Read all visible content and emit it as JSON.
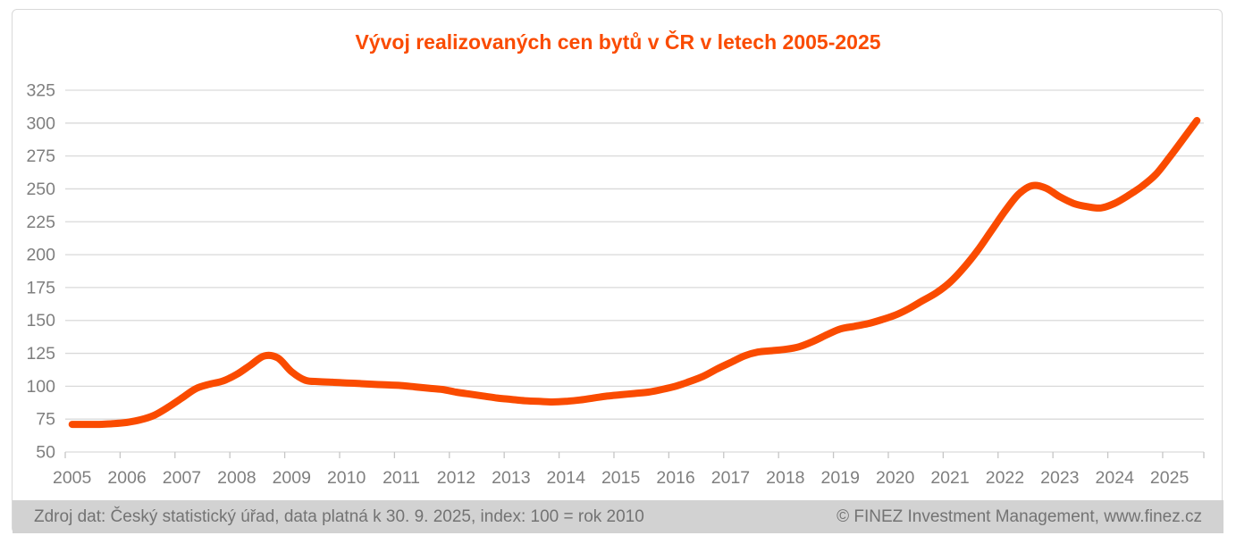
{
  "title": "Vývoj realizovaných cen bytů v ČR v letech 2005-2025",
  "footer": {
    "source_note": "Zdroj dat: Český statistický úřad, data platná k 30. 9. 2025, index: 100 = rok 2010",
    "copyright": "© FINEZ Investment Management, www.finez.cz"
  },
  "colors": {
    "accent_orange": "#fa4b00",
    "grid": "#d9d9d9",
    "tick": "#c6c6c6",
    "axis_labels": "#7f7f7f",
    "border": "#d9d9d9",
    "footer_bg": "#d2d2d2",
    "footer_text": "#737373",
    "background": "#ffffff"
  },
  "chart_data": {
    "type": "line",
    "title": "Vývoj realizovaných cen bytů v ČR v letech 2005-2025",
    "x_unit": "quarter",
    "points_per_year": 4,
    "x_tick_years": [
      "2005",
      "2006",
      "2007",
      "2008",
      "2009",
      "2010",
      "2011",
      "2012",
      "2013",
      "2014",
      "2015",
      "2016",
      "2017",
      "2018",
      "2019",
      "2020",
      "2021",
      "2022",
      "2023",
      "2024",
      "2025"
    ],
    "y_ticks": [
      50,
      75,
      100,
      125,
      150,
      175,
      200,
      225,
      250,
      275,
      300,
      325
    ],
    "ylim": [
      50,
      325
    ],
    "grid": true,
    "legend": "none",
    "line_color": "#fa4b00",
    "line_width": 8,
    "values": [
      71,
      71,
      71,
      71.5,
      72.5,
      74.5,
      78,
      84,
      91,
      98,
      101.5,
      104,
      109,
      116,
      123,
      121.5,
      111,
      104.5,
      103.5,
      103,
      102.5,
      102,
      101.5,
      101,
      100.5,
      99.5,
      98.5,
      97.5,
      95.5,
      94,
      92.5,
      91,
      90,
      89,
      88.5,
      88,
      88.5,
      89.5,
      91,
      92.5,
      93.5,
      94.5,
      95.5,
      97.5,
      100,
      103.5,
      107.5,
      113,
      118,
      123,
      126,
      127,
      128,
      130,
      134,
      139,
      143.5,
      145.5,
      147.5,
      150.5,
      154,
      159,
      165,
      171,
      179,
      190,
      203,
      218,
      233,
      246,
      252.5,
      250.5,
      244,
      239,
      236.5,
      235.5,
      239,
      245,
      252,
      261,
      274,
      288,
      302
    ]
  }
}
